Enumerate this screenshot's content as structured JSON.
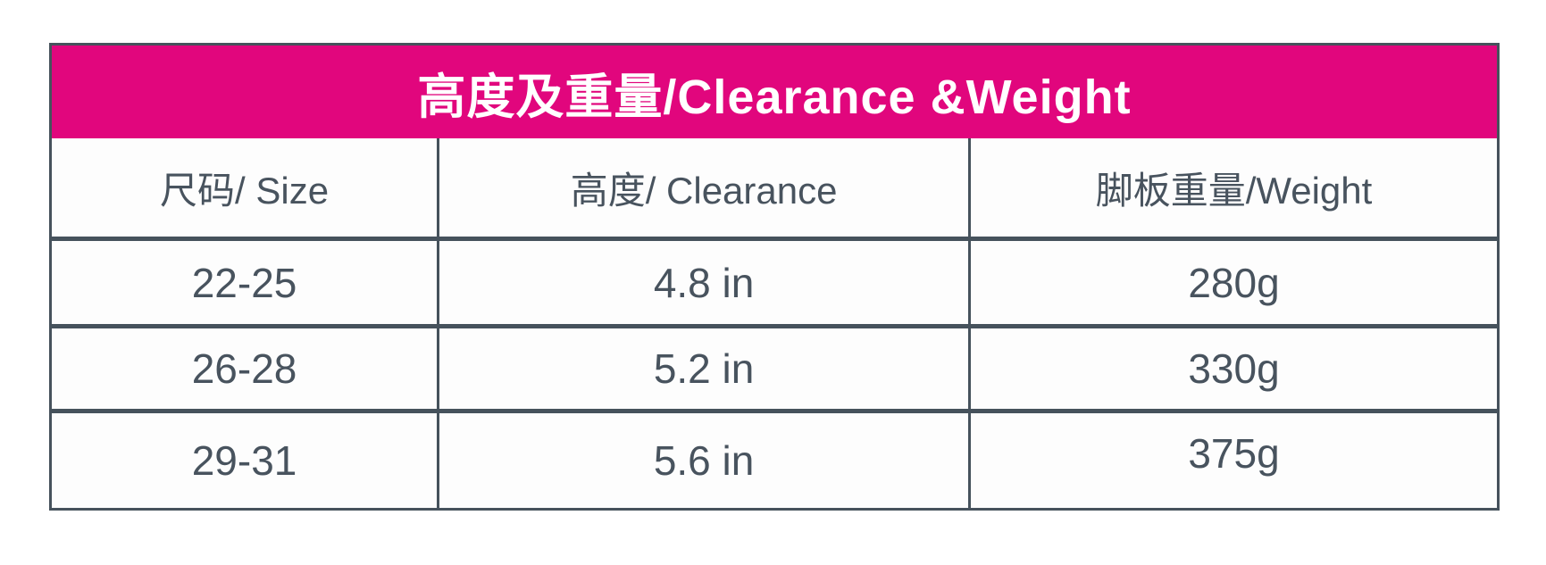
{
  "table": {
    "title": "高度及重量/Clearance &Weight",
    "columns": [
      "尺码/ Size",
      "高度/ Clearance",
      "脚板重量/Weight"
    ],
    "rows": [
      [
        "22-25",
        "4.8 in",
        "280g"
      ],
      [
        "26-28",
        "5.2 in",
        "330g"
      ],
      [
        "29-31",
        "5.6 in",
        "375g"
      ]
    ],
    "colors": {
      "title_background": "#E1067D",
      "title_text": "#FFFFFF",
      "body_text": "#48535E",
      "grid_border": "#46525C",
      "page_background": "#FFFFFF"
    }
  },
  "chart_data": {
    "type": "table",
    "title": "高度及重量/Clearance &Weight",
    "columns": [
      "尺码/ Size",
      "高度/ Clearance",
      "脚板重量/Weight"
    ],
    "rows": [
      [
        "22-25",
        "4.8 in",
        "280g"
      ],
      [
        "26-28",
        "5.2 in",
        "330g"
      ],
      [
        "29-31",
        "5.6 in",
        "375g"
      ]
    ]
  }
}
